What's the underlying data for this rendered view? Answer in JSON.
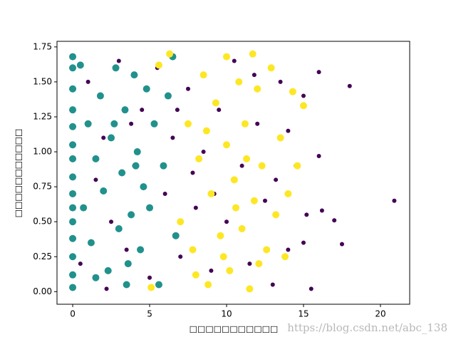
{
  "chart_data": {
    "type": "scatter",
    "x_label": "□□□□□□□□□□□",
    "y_label": "□□□□□□□□□□□",
    "watermark": "https://blog.csdn.net/abc_138",
    "xlim": [
      -1.02,
      21.9
    ],
    "ylim": [
      -0.09,
      1.79
    ],
    "xticks": [
      0,
      5,
      10,
      15,
      20
    ],
    "yticks": [
      {
        "value": 0,
        "label": "0.00"
      },
      {
        "value": 0.25,
        "label": "0.25"
      },
      {
        "value": 0.5,
        "label": "0.50"
      },
      {
        "value": 0.75,
        "label": "0.75"
      },
      {
        "value": 1.0,
        "label": "1.00"
      },
      {
        "value": 1.25,
        "label": "1.25"
      },
      {
        "value": 1.5,
        "label": "1.50"
      },
      {
        "value": 1.75,
        "label": "1.75"
      }
    ],
    "series": [
      {
        "color": "#440154",
        "marker_radius": 3,
        "x": [
          0.5,
          1,
          1.5,
          2,
          2.5,
          3,
          3.5,
          4,
          4.5,
          5,
          5.5,
          6,
          6.5,
          7,
          7.5,
          8,
          8.5,
          9,
          9.5,
          10,
          10.5,
          11,
          11.5,
          12,
          12.5,
          13,
          13.5,
          14,
          14.5,
          15,
          15.2,
          15.5,
          16,
          16,
          16.2,
          17,
          17.5,
          18,
          20.9,
          15,
          14,
          2.2,
          7.8,
          9.2,
          11.8,
          13.2,
          3.8,
          6.8
        ],
        "y": [
          0.2,
          1.5,
          0.8,
          1.1,
          0.5,
          1.65,
          0.3,
          0.9,
          1.3,
          0.1,
          1.6,
          0.7,
          1.1,
          0.25,
          1.45,
          0.6,
          1.0,
          0.15,
          1.3,
          0.5,
          1.65,
          0.9,
          0.2,
          1.2,
          0.65,
          0.05,
          1.5,
          0.3,
          0.9,
          1.4,
          0.55,
          0.02,
          1.57,
          0.97,
          0.58,
          0.51,
          0.34,
          1.47,
          0.65,
          0.35,
          1.15,
          0.02,
          0.85,
          0.7,
          1.55,
          0.8,
          1.2,
          1.3
        ]
      },
      {
        "color": "#21918c",
        "marker_radius": 5,
        "x": [
          0,
          0,
          0,
          0,
          0,
          0,
          0,
          0,
          0,
          0,
          0,
          0,
          0,
          0,
          0,
          0.5,
          0.7,
          1.0,
          1.2,
          1.5,
          1.8,
          2.0,
          2.3,
          2.5,
          2.8,
          3.0,
          3.2,
          3.4,
          3.6,
          3.8,
          4.0,
          4.2,
          4.4,
          4.6,
          4.8,
          5.0,
          5.3,
          5.6,
          5.9,
          6.2,
          6.5,
          6.7,
          3.5,
          1.5,
          2.7,
          4.1
        ],
        "y": [
          1.68,
          1.6,
          1.45,
          1.3,
          1.18,
          1.05,
          0.95,
          0.82,
          0.7,
          0.6,
          0.5,
          0.38,
          0.25,
          0.12,
          0.03,
          1.62,
          0.6,
          1.2,
          0.35,
          0.95,
          1.4,
          0.72,
          0.15,
          1.1,
          1.6,
          0.45,
          0.85,
          1.3,
          0.2,
          0.55,
          1.55,
          1.0,
          0.3,
          0.75,
          1.45,
          0.6,
          1.2,
          0.05,
          0.9,
          1.4,
          1.68,
          0.4,
          0.05,
          0.1,
          1.2,
          0.9
        ]
      },
      {
        "color": "#fde725",
        "marker_radius": 5,
        "x": [
          5.1,
          5.6,
          6.3,
          7,
          7.5,
          7.8,
          8.2,
          8.5,
          8.8,
          9,
          9.3,
          9.6,
          10,
          10.2,
          10.5,
          10.8,
          11,
          11.2,
          11.5,
          11.8,
          12,
          12.3,
          12.6,
          12.9,
          13.2,
          13.5,
          13.8,
          14,
          14.3,
          14.6,
          15,
          10,
          11.7,
          8,
          9.8,
          10.6,
          11.3,
          8.7,
          12.1
        ],
        "y": [
          0.03,
          1.62,
          1.7,
          0.5,
          1.2,
          0.3,
          0.95,
          1.55,
          0.05,
          0.7,
          1.35,
          0.4,
          1.05,
          0.15,
          0.8,
          1.5,
          0.45,
          1.2,
          0.02,
          0.65,
          1.45,
          0.9,
          0.3,
          1.6,
          0.55,
          1.1,
          0.25,
          0.7,
          1.43,
          0.9,
          1.33,
          1.68,
          1.7,
          0.12,
          0.25,
          0.6,
          0.95,
          1.15,
          0.2
        ]
      }
    ]
  }
}
